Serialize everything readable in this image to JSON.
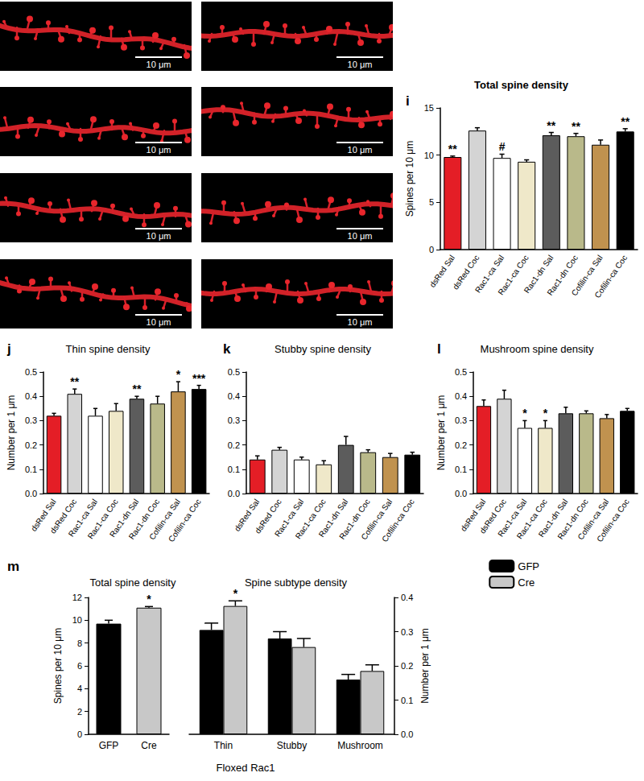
{
  "micrographs": [
    {
      "scale_bar": "10 μm"
    },
    {
      "scale_bar": "10 μm"
    },
    {
      "scale_bar": "10 μm"
    },
    {
      "scale_bar": "10 μm"
    },
    {
      "scale_bar": "10 μm"
    },
    {
      "scale_bar": "10 μm"
    },
    {
      "scale_bar": "10 μm"
    },
    {
      "scale_bar": "10 μm"
    }
  ],
  "chart_data": [
    {
      "type": "bar",
      "panel": "i",
      "title": "Total spine density",
      "ylabel": "Spines per 10 μm",
      "categories": [
        "dsRed Sal",
        "dsRed Coc",
        "Rac1-ca Sal",
        "Rac1-ca Coc",
        "Rac1-dn Sal",
        "Rac1-dn Coc",
        "Cofilin-ca Sal",
        "Cofilin-ca Coc"
      ],
      "values": [
        9.8,
        12.6,
        9.7,
        9.3,
        12.1,
        12.0,
        11.1,
        12.5
      ],
      "errors": [
        0.1,
        0.3,
        0.4,
        0.2,
        0.3,
        0.3,
        0.5,
        0.3
      ],
      "annotations": [
        "**",
        null,
        "#",
        null,
        "**",
        "**",
        null,
        "**"
      ],
      "colors": [
        "#e41e26",
        "#d4d4d4",
        "#ffffff",
        "#efe8c9",
        "#5c5c5c",
        "#b9b98a",
        "#c0924f",
        "#000000"
      ],
      "ylim": [
        0,
        15
      ],
      "yticks": [
        0,
        5,
        10,
        15
      ],
      "grid": false
    },
    {
      "type": "bar",
      "panel": "j",
      "title": "Thin spine density",
      "ylabel": "Number per 1 μm",
      "categories": [
        "dsRed Sal",
        "dsRed Coc",
        "Rac1-ca Sal",
        "Rac1-ca Coc",
        "Rac1-dn Sal",
        "Rac1-dn Coc",
        "Cofilin-ca Sal",
        "Cofilin-ca Coc"
      ],
      "values": [
        0.32,
        0.41,
        0.32,
        0.34,
        0.39,
        0.37,
        0.42,
        0.43
      ],
      "errors": [
        0.01,
        0.02,
        0.03,
        0.03,
        0.01,
        0.03,
        0.04,
        0.015
      ],
      "annotations": [
        null,
        "**",
        null,
        null,
        "**",
        null,
        "*",
        "***"
      ],
      "colors": [
        "#e41e26",
        "#d4d4d4",
        "#ffffff",
        "#efe8c9",
        "#5c5c5c",
        "#b9b98a",
        "#c0924f",
        "#000000"
      ],
      "ylim": [
        0,
        0.5
      ],
      "yticks": [
        {
          "value": 0,
          "label": "0.0"
        },
        0.1,
        0.2,
        0.3,
        0.4,
        0.5
      ],
      "grid": false
    },
    {
      "type": "bar",
      "panel": "k",
      "title": "Stubby spine density",
      "categories": [
        "dsRed Sal",
        "dsRed Coc",
        "Rac1-ca Sal",
        "Rac1-ca Coc",
        "Rac1-dn Sal",
        "Rac1-dn Coc",
        "Cofilin-ca Sal",
        "Cofilin-ca Coc"
      ],
      "values": [
        0.14,
        0.18,
        0.14,
        0.12,
        0.2,
        0.17,
        0.15,
        0.16
      ],
      "errors": [
        0.015,
        0.01,
        0.01,
        0.015,
        0.035,
        0.01,
        0.015,
        0.01
      ],
      "annotations": [
        null,
        null,
        null,
        null,
        null,
        null,
        null,
        null
      ],
      "colors": [
        "#e41e26",
        "#d4d4d4",
        "#ffffff",
        "#efe8c9",
        "#5c5c5c",
        "#b9b98a",
        "#c0924f",
        "#000000"
      ],
      "ylim": [
        0,
        0.5
      ],
      "yticks": [
        {
          "value": 0,
          "label": "0.0"
        },
        0.1,
        0.2,
        0.3,
        0.4,
        0.5
      ],
      "grid": false
    },
    {
      "type": "bar",
      "panel": "l",
      "title": "Mushroom spine density",
      "ylabel": "Number per 1 μm",
      "categories": [
        "dsRed Sal",
        "dsRed Coc",
        "Rac1-ca Sal",
        "Rac1-ca Coc",
        "Rac1-dn Sal",
        "Rac1-dn Coc",
        "Cofilin-ca Sal",
        "Cofilin-ca Coc"
      ],
      "values": [
        0.36,
        0.39,
        0.27,
        0.27,
        0.33,
        0.33,
        0.31,
        0.34
      ],
      "errors": [
        0.025,
        0.035,
        0.03,
        0.03,
        0.025,
        0.01,
        0.015,
        0.01
      ],
      "annotations": [
        null,
        null,
        "*",
        "*",
        null,
        null,
        null,
        null
      ],
      "colors": [
        "#e41e26",
        "#d4d4d4",
        "#ffffff",
        "#efe8c9",
        "#5c5c5c",
        "#b9b98a",
        "#c0924f",
        "#000000"
      ],
      "ylim": [
        0,
        0.5
      ],
      "yticks": [
        {
          "value": 0,
          "label": "0.0"
        },
        0.1,
        0.2,
        0.3,
        0.4,
        0.5
      ],
      "grid": false
    },
    {
      "type": "bar",
      "panel": "m",
      "xlabel": "Floxed Rac1",
      "legend": "top-right",
      "grid": false,
      "subplots": [
        {
          "title": "Total spine density",
          "ylabel": "Spines per 10 μm",
          "categories": [
            "GFP",
            "Cre"
          ],
          "values": [
            9.7,
            11.1
          ],
          "errors": [
            0.3,
            0.1
          ],
          "annotations": [
            null,
            "*"
          ],
          "colors": [
            "#000000",
            "#c8c8c8"
          ],
          "ylim": [
            0,
            12
          ],
          "yticks": [
            0,
            2,
            4,
            6,
            8,
            10,
            12
          ]
        },
        {
          "title": "Spine subtype density",
          "ylabel": "Number per 1 μm",
          "axis": "y2",
          "categories": [
            "Thin",
            "Stubby",
            "Mushroom"
          ],
          "series": [
            {
              "name": "GFP",
              "color": "#000000",
              "values": [
                0.305,
                0.28,
                0.16
              ],
              "errors": [
                0.02,
                0.02,
                0.015
              ],
              "annotations": [
                null,
                null,
                null
              ]
            },
            {
              "name": "Cre",
              "color": "#c8c8c8",
              "values": [
                0.375,
                0.255,
                0.185
              ],
              "errors": [
                0.015,
                0.025,
                0.018
              ],
              "annotations": [
                "*",
                null,
                null
              ]
            }
          ],
          "y2lim": [
            0,
            0.4
          ],
          "y2ticks": [
            {
              "value": 0,
              "label": "0.0"
            },
            0.1,
            0.2,
            0.3,
            0.4
          ]
        }
      ]
    }
  ]
}
